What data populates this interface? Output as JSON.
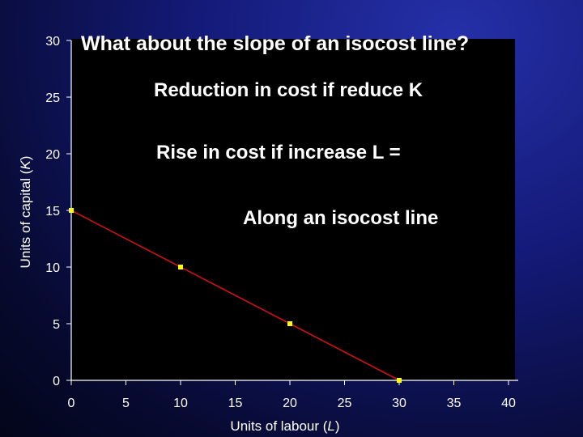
{
  "slide": {
    "title": "What about the slope of an isocost line?",
    "notes": [
      "Reduction in cost if reduce K",
      "Rise in cost if increase L =",
      "Along an isocost line"
    ]
  },
  "colors": {
    "line": "#cc1111",
    "marker": "#ffff00",
    "axis": "#ffffff",
    "plot_background": "#000000"
  },
  "chart_data": {
    "type": "line",
    "xlabel_parts": [
      "Units of labour (",
      "L",
      ")"
    ],
    "ylabel_parts": [
      "Units of capital (",
      "K",
      ")"
    ],
    "xlim": [
      0,
      40
    ],
    "ylim": [
      0,
      30
    ],
    "xticks": [
      "0",
      "5",
      "10",
      "15",
      "20",
      "25",
      "30",
      "35",
      "40"
    ],
    "yticks": [
      "0",
      "5",
      "10",
      "15",
      "20",
      "25",
      "30"
    ],
    "series": [
      {
        "x": [
          0,
          10,
          20,
          30
        ],
        "y": [
          15,
          10,
          5,
          0
        ]
      }
    ],
    "grid": false,
    "legend": "none"
  }
}
